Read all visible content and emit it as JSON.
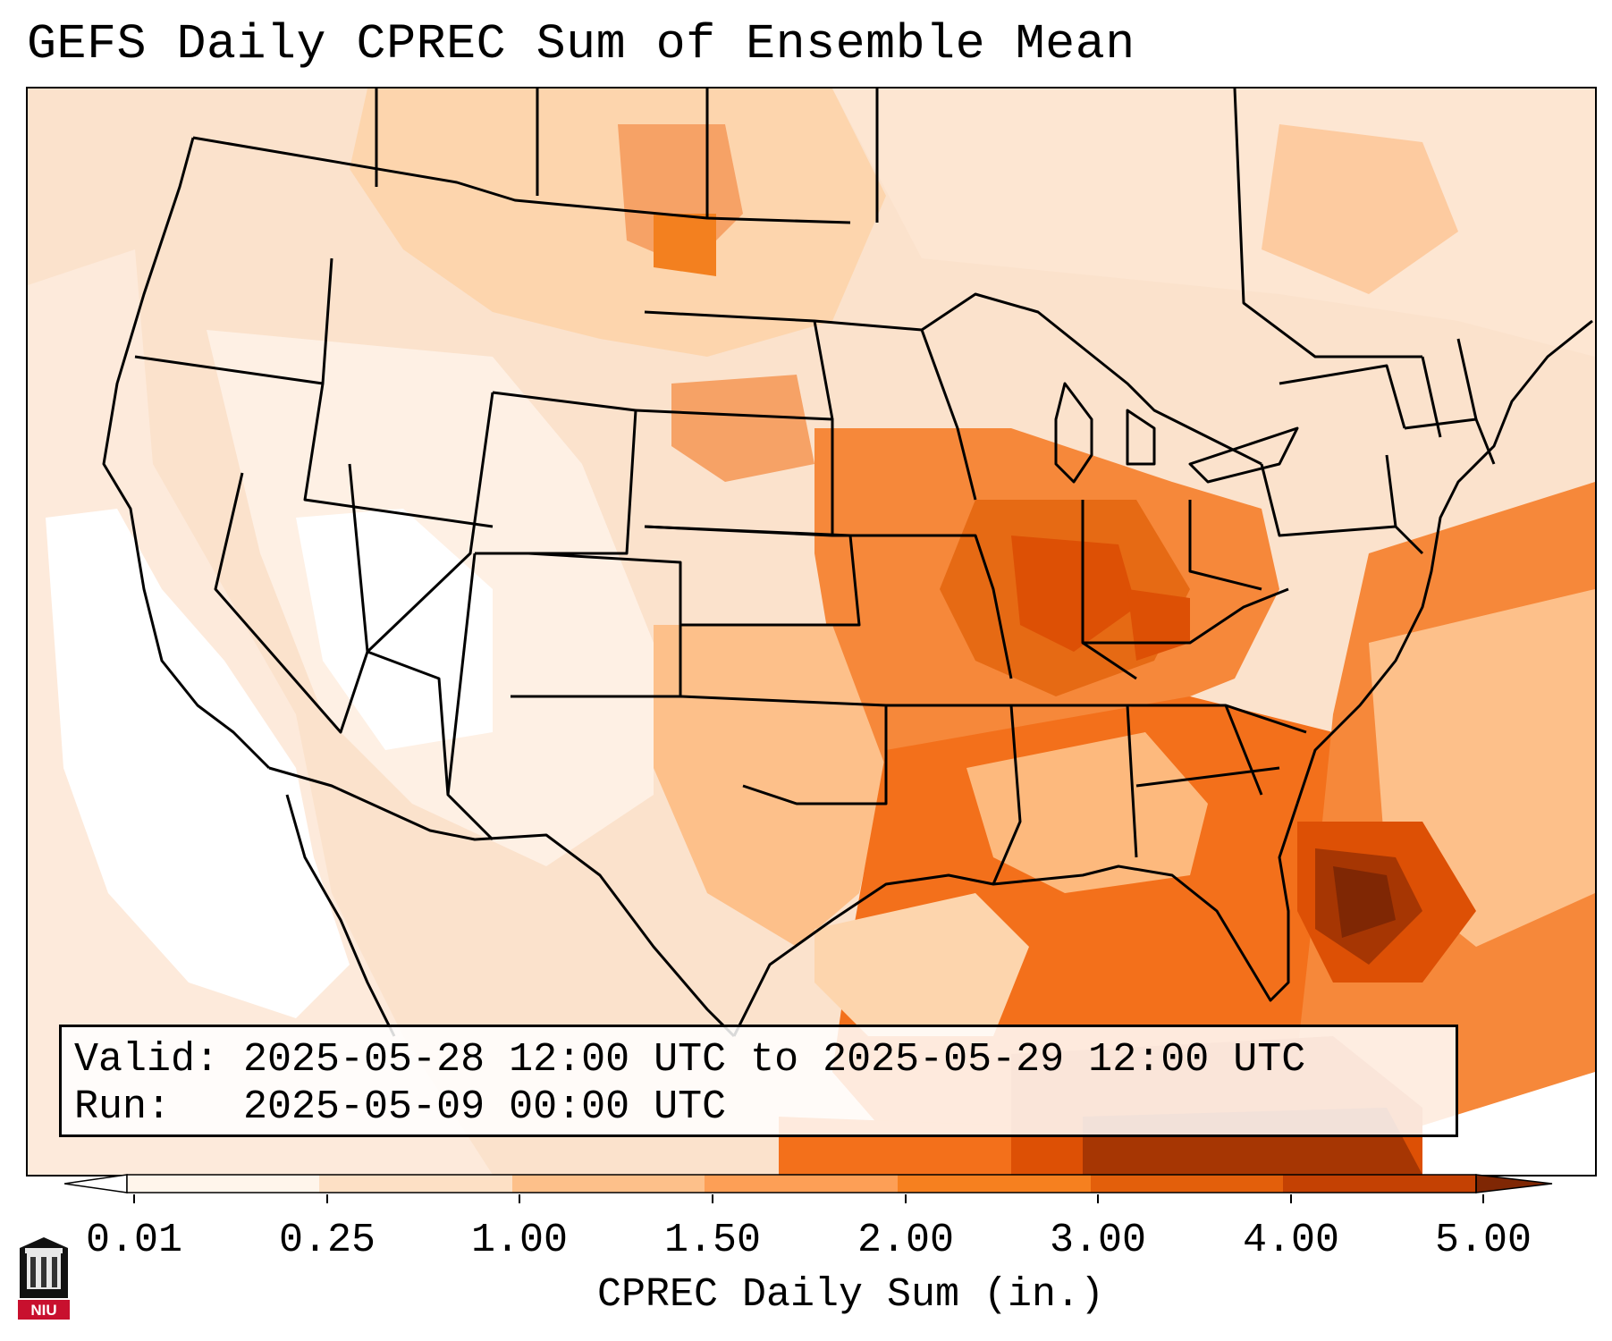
{
  "title": "GEFS Daily CPREC Sum of Ensemble Mean",
  "info": {
    "valid_line": "Valid: 2025-05-28 12:00 UTC to 2025-05-29 12:00 UTC",
    "run_line": "Run:   2025-05-09 00:00 UTC"
  },
  "colorbar": {
    "label": "CPREC Daily Sum (in.)",
    "ticks": [
      "0.01",
      "0.25",
      "1.00",
      "1.50",
      "2.00",
      "3.00",
      "4.00",
      "5.00"
    ],
    "colors": [
      "#fff5eb",
      "#fde0c5",
      "#fdb97d",
      "#fd9243",
      "#f3701b",
      "#dd5005",
      "#a63603",
      "#7f2704"
    ]
  },
  "map": {
    "region": "Continental United States",
    "precip_field_colors": {
      "trace": "#ffffff",
      "low": "#fdeadb",
      "light": "#fdd5ad",
      "moderate": "#fdb97d",
      "heavy": "#f6883a",
      "very_heavy": "#e15a0b",
      "extreme": "#a63603",
      "max": "#7f2704"
    }
  },
  "logo": {
    "text": "NIU",
    "icon": "university-building-icon"
  }
}
